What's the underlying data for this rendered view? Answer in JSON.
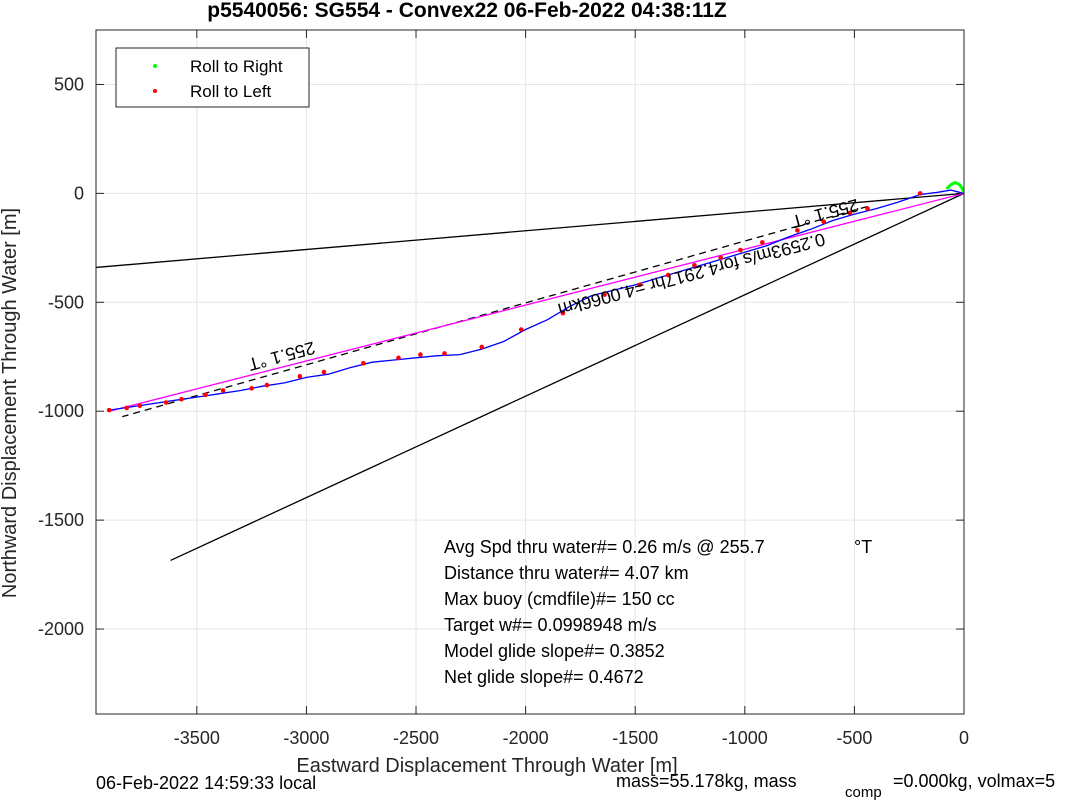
{
  "chart_data": {
    "type": "line",
    "title": "p5540056: SG554 - Convex22 06-Feb-2022 04:38:11Z",
    "xlabel": "Eastward Displacement Through Water [m]",
    "ylabel": "Northward Displacement Through Water [m]",
    "xlim": [
      -3960,
      0
    ],
    "ylim": [
      -2390,
      750
    ],
    "xticks": [
      -3500,
      -3000,
      -2500,
      -2000,
      -1500,
      -1000,
      -500,
      0
    ],
    "yticks": [
      500,
      0,
      -500,
      -1000,
      -1500,
      -2000
    ],
    "grid": true,
    "legend_placement": "top-left",
    "legend": [
      "Roll to Right",
      "Roll to Left"
    ],
    "track": {
      "x": [
        0,
        -60,
        -120,
        -200,
        -300,
        -400,
        -500,
        -600,
        -700,
        -800,
        -900,
        -1000,
        -1100,
        -1200,
        -1300,
        -1400,
        -1500,
        -1600,
        -1700,
        -1800,
        -1900,
        -2000,
        -2100,
        -2200,
        -2300,
        -2400,
        -2500,
        -2600,
        -2700,
        -2800,
        -2900,
        -3000,
        -3100,
        -3200,
        -3300,
        -3400,
        -3500,
        -3600,
        -3700,
        -3800,
        -3900
      ],
      "y": [
        0,
        15,
        5,
        -5,
        -40,
        -70,
        -95,
        -125,
        -165,
        -200,
        -240,
        -270,
        -300,
        -330,
        -360,
        -390,
        -420,
        -445,
        -470,
        -520,
        -580,
        -625,
        -680,
        -715,
        -740,
        -745,
        -755,
        -765,
        -775,
        -800,
        -830,
        -845,
        -870,
        -885,
        -905,
        -920,
        -935,
        -950,
        -965,
        -980,
        -995
      ]
    },
    "roll_left_points": {
      "x": [
        -200,
        -440,
        -520,
        -640,
        -760,
        -920,
        -1020,
        -1110,
        -1230,
        -1350,
        -1480,
        -1640,
        -1830,
        -2020,
        -2200,
        -2370,
        -2480,
        -2580,
        -2740,
        -2920,
        -3030,
        -3180,
        -3250,
        -3380,
        -3460,
        -3570,
        -3640,
        -3760,
        -3820,
        -3900
      ],
      "y": [
        0,
        -70,
        -90,
        -130,
        -170,
        -225,
        -260,
        -295,
        -330,
        -375,
        -420,
        -465,
        -550,
        -625,
        -705,
        -735,
        -740,
        -755,
        -780,
        -820,
        -840,
        -880,
        -895,
        -905,
        -925,
        -945,
        -960,
        -975,
        -985,
        -995
      ]
    },
    "roll_right_arc": {
      "x": [
        -80,
        -60,
        -40,
        -20,
        -10,
        0
      ],
      "y": [
        20,
        40,
        50,
        40,
        25,
        5
      ]
    },
    "reference_lines": [
      {
        "color": "#000000",
        "style": "solid",
        "x": [
          0,
          -3960
        ],
        "y": [
          0,
          -340
        ]
      },
      {
        "color": "#000000",
        "style": "solid",
        "x": [
          0,
          -3620
        ],
        "y": [
          0,
          -1685
        ]
      },
      {
        "color": "#000000",
        "style": "dashed",
        "x": [
          -440,
          -3840
        ],
        "y": [
          -60,
          -1025
        ]
      },
      {
        "color": "#ff00ff",
        "style": "solid",
        "x": [
          0,
          -3900
        ],
        "y": [
          0,
          -1000
        ]
      }
    ],
    "rotated_labels": [
      {
        "text": "255.1 °T",
        "x": -3120,
        "y": -720,
        "angle": 165
      },
      {
        "text": "255.1 °T",
        "x": -640,
        "y": -65,
        "angle": 165
      },
      {
        "text": "0.2593m/s for4.2917hr =4.0066km",
        "x": -1250,
        "y": -345,
        "angle": 165
      }
    ],
    "annotations": [
      "Avg Spd thru water#=  0.26 m/s @ 255.7",
      "Distance thru water#=  4.07 km",
      "Max buoy (cmdfile)#= 150 cc",
      "Target w#= 0.0998948 m/s",
      "Model glide slope#= 0.3852",
      "Net glide slope#= 0.4672"
    ],
    "degree_unit": "°T"
  },
  "footer": {
    "local_time": "06-Feb-2022 14:59:33 local",
    "mass": "mass=55.178kg, mass",
    "subscript": "comp",
    "mass_rest": "=0.000kg, volmax=5"
  },
  "colors": {
    "track": "#0000ff",
    "roll_left": "#ff0000",
    "roll_right": "#00ff00",
    "glide": "#ff00ff",
    "grid": "#e6e6e6",
    "axis": "#262626"
  }
}
